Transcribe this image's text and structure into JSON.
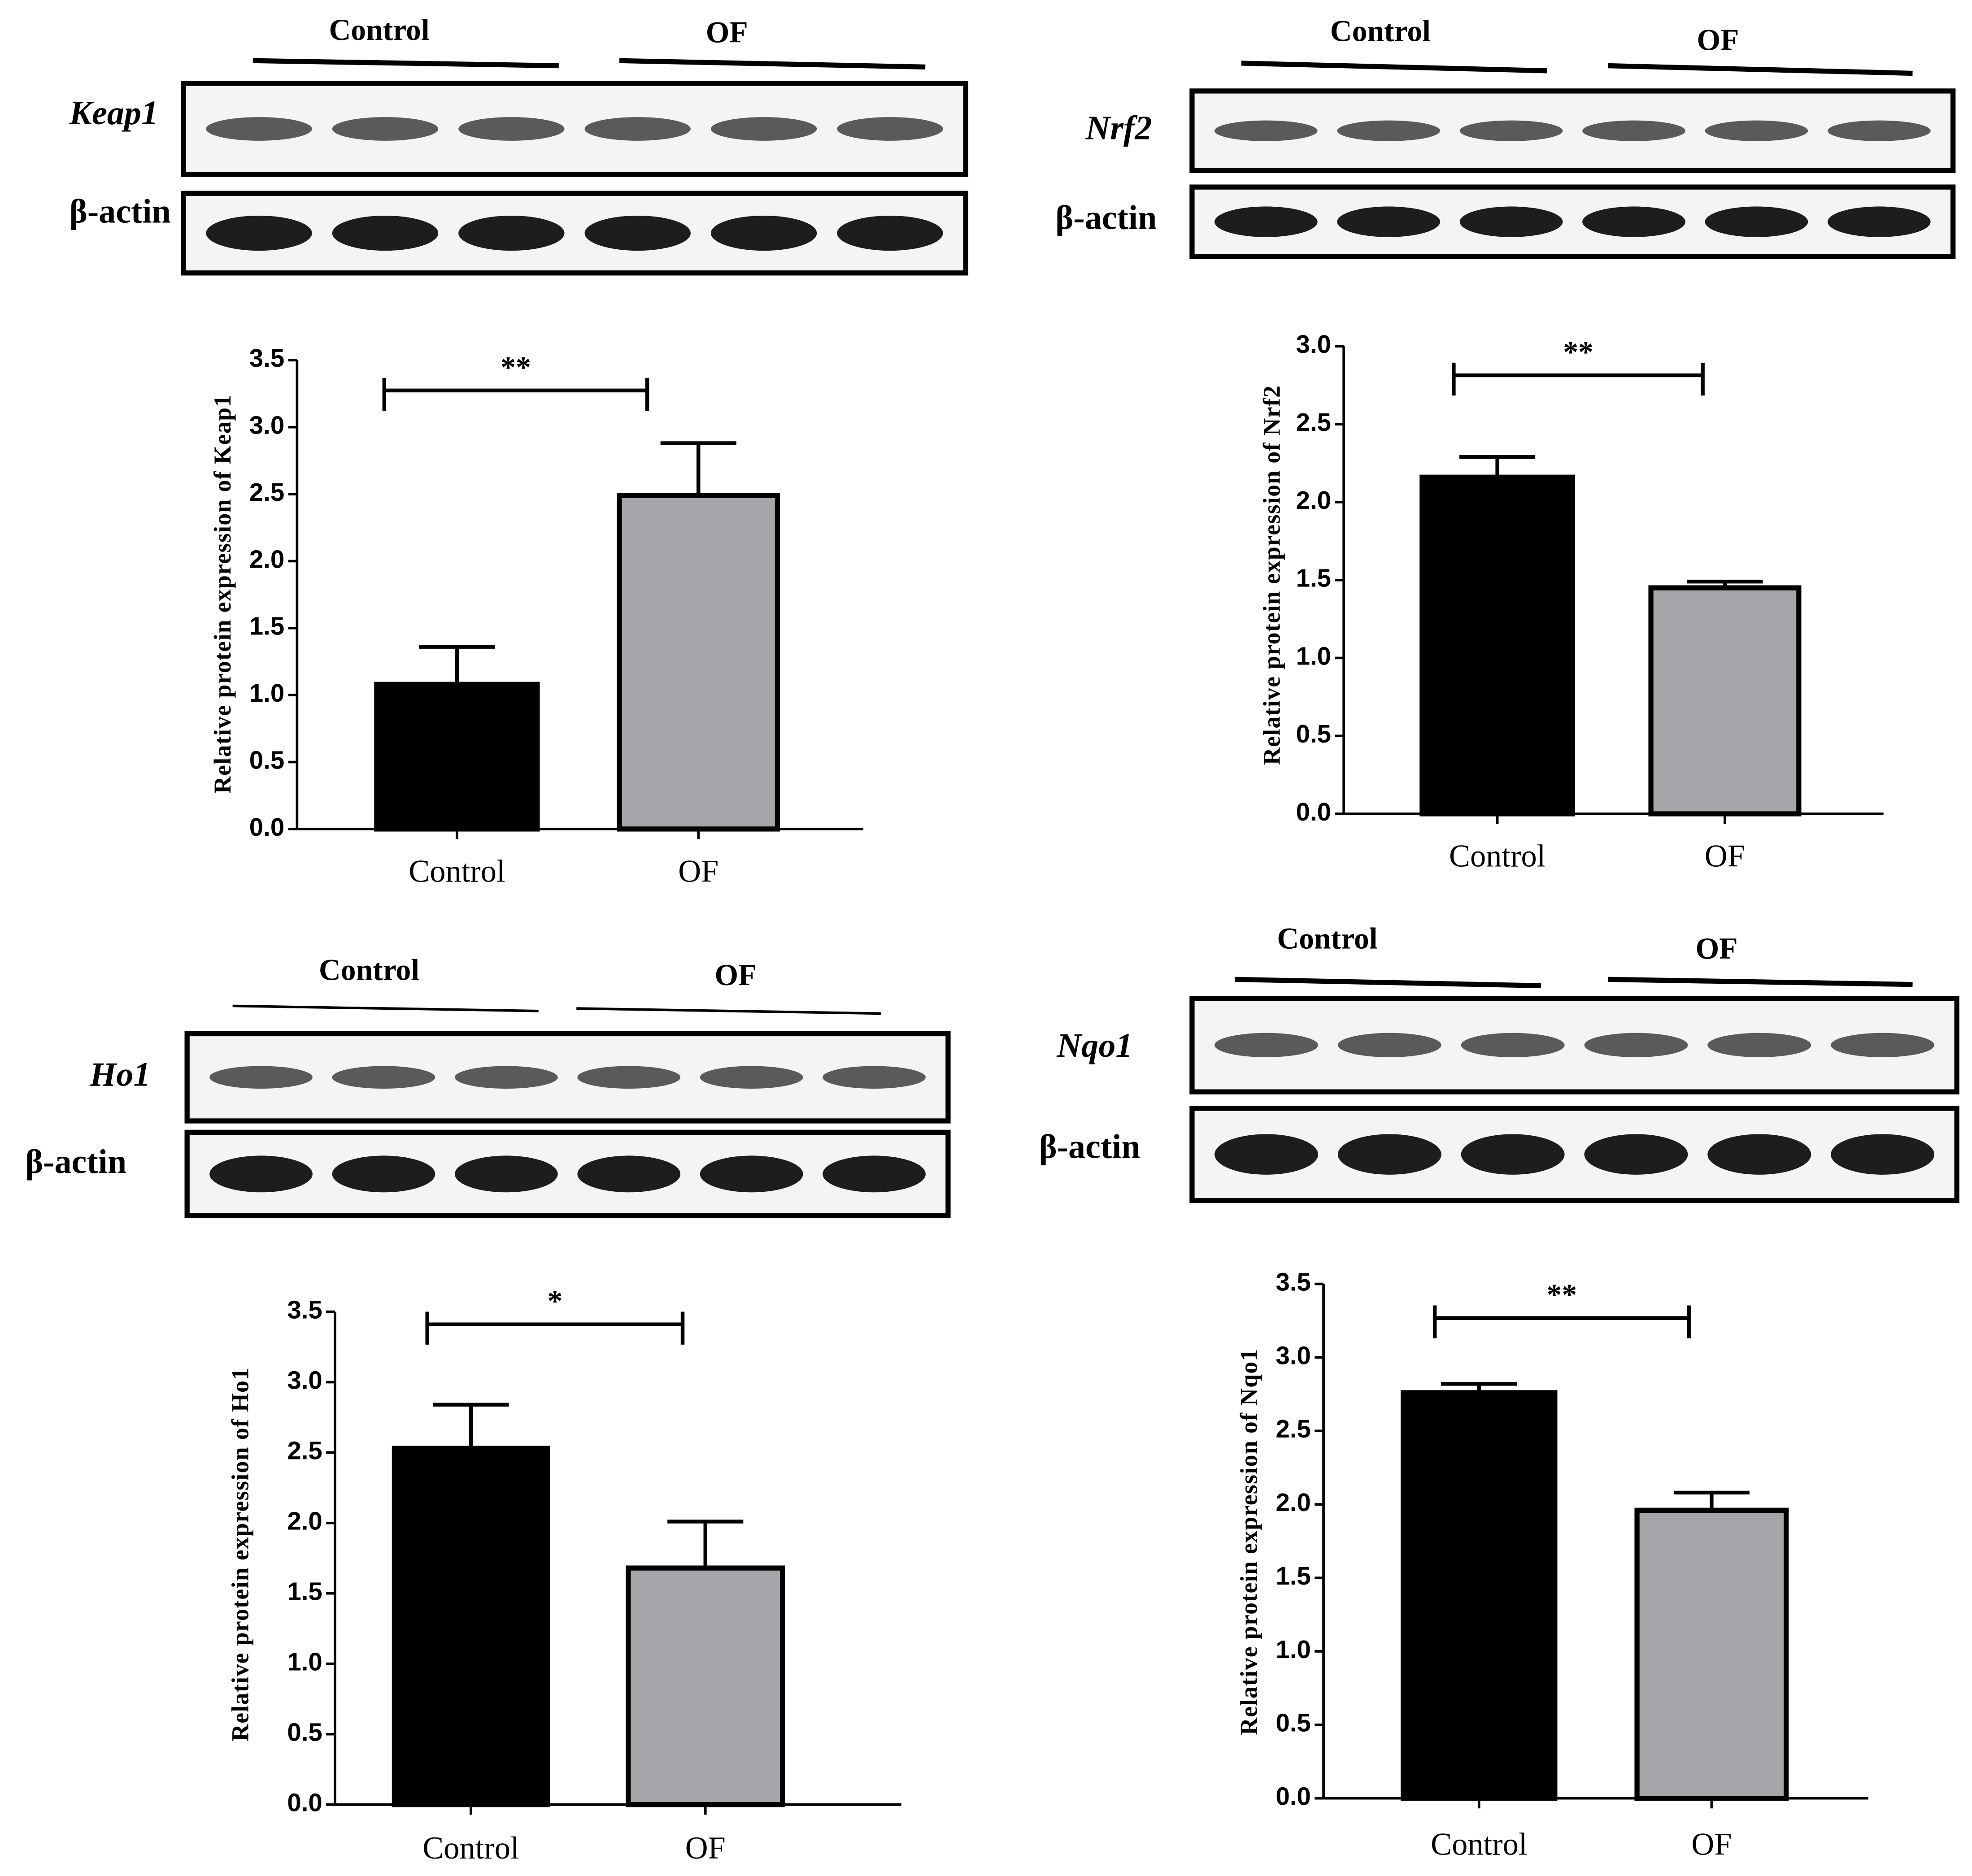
{
  "chart_data": [
    {
      "type": "bar",
      "y_label": "Relative protein expression of Keap1",
      "categories": [
        "Control",
        "OF"
      ],
      "values": [
        1.08,
        2.49
      ],
      "errors": [
        0.28,
        0.39
      ],
      "colors": [
        "#000000",
        "#a6a5aa"
      ],
      "ylim": [
        0,
        3.5
      ],
      "yticks": [
        {
          "value": 0,
          "label": "0.0"
        },
        0.5,
        {
          "value": 1,
          "label": "1.0"
        },
        1.5,
        {
          "value": 2,
          "label": "2.0"
        },
        2.5,
        {
          "value": 3,
          "label": "3.0"
        },
        3.5
      ],
      "significance": "**",
      "blot": {
        "protein": "Keap1",
        "loading": "β-actin"
      }
    },
    {
      "type": "bar",
      "y_label": "Relative protein expression of Nrf2",
      "categories": [
        "Control",
        "OF"
      ],
      "values": [
        2.16,
        1.45
      ],
      "errors": [
        0.13,
        0.04
      ],
      "colors": [
        "#000000",
        "#a6a5aa"
      ],
      "ylim": [
        0,
        3.0
      ],
      "yticks": [
        {
          "value": 0,
          "label": "0.0"
        },
        0.5,
        {
          "value": 1,
          "label": "1.0"
        },
        1.5,
        {
          "value": 2,
          "label": "2.0"
        },
        2.5,
        {
          "value": 3,
          "label": "3.0"
        }
      ],
      "significance": "**",
      "blot": {
        "protein": "Nrf2",
        "loading": "β-actin"
      }
    },
    {
      "type": "bar",
      "y_label": "Relative protein expression of Ho1",
      "categories": [
        "Control",
        "OF"
      ],
      "values": [
        2.53,
        1.68
      ],
      "errors": [
        0.31,
        0.33
      ],
      "colors": [
        "#000000",
        "#a6a5aa"
      ],
      "ylim": [
        0,
        3.5
      ],
      "yticks": [
        {
          "value": 0,
          "label": "0.0"
        },
        0.5,
        {
          "value": 1,
          "label": "1.0"
        },
        1.5,
        {
          "value": 2,
          "label": "2.0"
        },
        2.5,
        {
          "value": 3,
          "label": "3.0"
        },
        3.5
      ],
      "significance": "*",
      "blot": {
        "protein": "Ho1",
        "loading": "β-actin"
      }
    },
    {
      "type": "bar",
      "y_label": "Relative protein expression of Nqo1",
      "categories": [
        "Control",
        "OF"
      ],
      "values": [
        2.76,
        1.96
      ],
      "errors": [
        0.06,
        0.12
      ],
      "colors": [
        "#000000",
        "#a6a5aa"
      ],
      "ylim": [
        0,
        3.5
      ],
      "yticks": [
        {
          "value": 0,
          "label": "0.0"
        },
        0.5,
        {
          "value": 1,
          "label": "1.0"
        },
        1.5,
        {
          "value": 2,
          "label": "2.0"
        },
        2.5,
        {
          "value": 3,
          "label": "3.0"
        },
        3.5
      ],
      "significance": "**",
      "blot": {
        "protein": "Nqo1",
        "loading": "β-actin"
      }
    }
  ]
}
